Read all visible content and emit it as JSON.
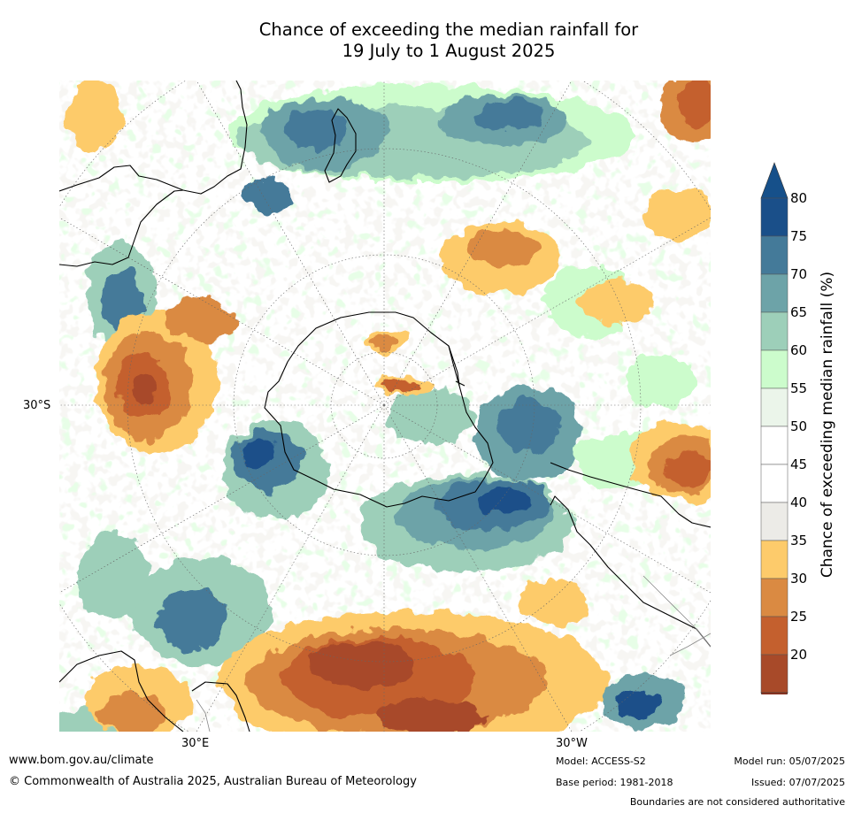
{
  "title": {
    "line1": "Chance of exceeding the median rainfall for",
    "line2": "19 July to 1 August 2025"
  },
  "map": {
    "projection_labels": {
      "lat_left": "30°S",
      "lon_bottom_left": "30°E",
      "lon_bottom_right": "30°W"
    }
  },
  "legend": {
    "label": "Chance of exceeding median rainfall (%)",
    "ticks": [
      "20",
      "25",
      "30",
      "35",
      "40",
      "45",
      "50",
      "55",
      "60",
      "65",
      "70",
      "75",
      "80"
    ],
    "colors": [
      "#a84a29",
      "#c4602e",
      "#da8a42",
      "#fdcb6b",
      "#ecebe7",
      "#ffffff",
      "#ffffff",
      "#ebf5ea",
      "#ccfccc",
      "#9dcfb9",
      "#6da3a8",
      "#447a99",
      "#1a4f89"
    ],
    "under_color": "#8e3320",
    "over_color": "#16508a"
  },
  "footer": {
    "website": "www.bom.gov.au/climate",
    "copyright": "© Commonwealth of Australia 2025, Australian Bureau of Meteorology",
    "model": "Model: ACCESS-S2",
    "base_period": "Base period: 1981-2018",
    "model_run": "Model run: 05/07/2025",
    "issued": "Issued: 07/07/2025",
    "disclaimer": "Boundaries are not considered authoritative"
  }
}
